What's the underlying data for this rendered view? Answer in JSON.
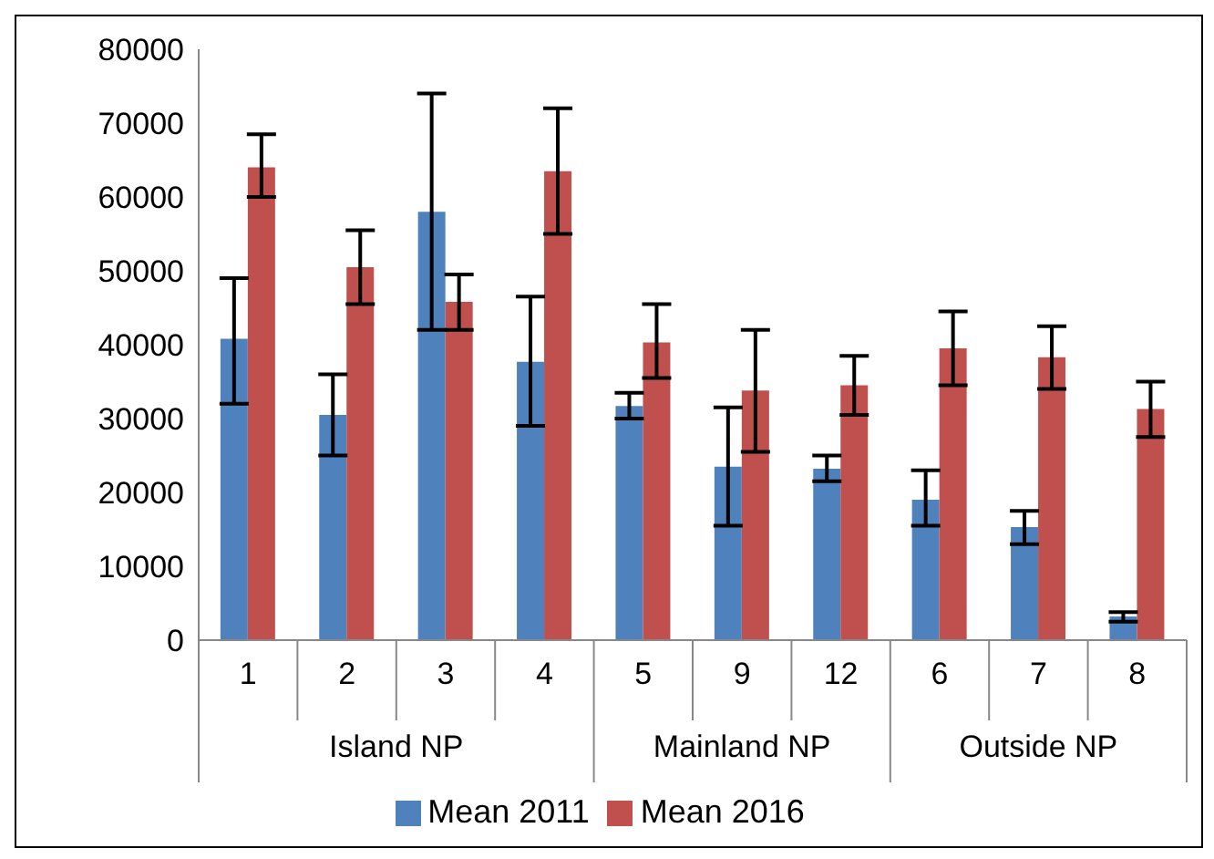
{
  "chart_data": {
    "type": "bar",
    "categories": [
      "1",
      "2",
      "3",
      "4",
      "5",
      "9",
      "12",
      "6",
      "7",
      "8"
    ],
    "series": [
      {
        "name": "Mean 2011",
        "color": "#4f81bd",
        "values": [
          40800,
          30500,
          58000,
          37700,
          31700,
          23500,
          23200,
          19000,
          15300,
          3200
        ],
        "errors": [
          [
            32000,
            49000
          ],
          [
            25000,
            36000
          ],
          [
            42000,
            74000
          ],
          [
            29000,
            46500
          ],
          [
            30000,
            33500
          ],
          [
            15500,
            31500
          ],
          [
            21500,
            25000
          ],
          [
            15500,
            23000
          ],
          [
            13000,
            17500
          ],
          [
            2500,
            3800
          ]
        ]
      },
      {
        "name": "Mean 2016",
        "color": "#c0504d",
        "values": [
          64000,
          50500,
          45800,
          63500,
          40300,
          33800,
          34500,
          39500,
          38300,
          31300
        ],
        "errors": [
          [
            60000,
            68500
          ],
          [
            45500,
            55500
          ],
          [
            42000,
            49500
          ],
          [
            55000,
            72000
          ],
          [
            35500,
            45500
          ],
          [
            25500,
            42000
          ],
          [
            30500,
            38500
          ],
          [
            34500,
            44500
          ],
          [
            34000,
            42500
          ],
          [
            27500,
            35000
          ]
        ]
      }
    ],
    "ylim": [
      0,
      80000
    ],
    "yticks": [
      0,
      10000,
      20000,
      30000,
      40000,
      50000,
      60000,
      70000,
      80000
    ],
    "annotations": [
      "Island NP",
      "Mainland NP",
      "Outside NP"
    ],
    "legend": "bottom",
    "grid": false
  }
}
